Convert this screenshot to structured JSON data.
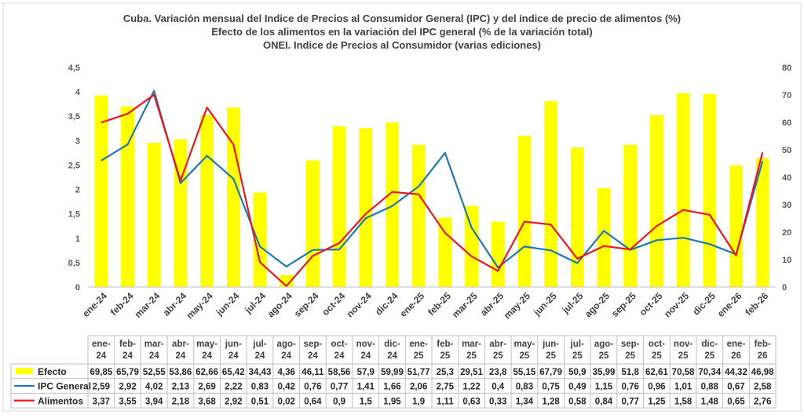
{
  "chart_data": {
    "type": "bar+line",
    "title_lines": [
      "Cuba. Variación mensual del Indice de Precios al Consumidor General  (IPC) y del índice de precio de alimentos (%)",
      "Efecto de los alimentos en la variación del IPC general (%  de la variación total)",
      "ONEI. Indice de Precios al Consumidor (varias ediciones)"
    ],
    "categories": [
      "ene-24",
      "feb-24",
      "mar-24",
      "abr-24",
      "may-24",
      "jun-24",
      "jul-24",
      "ago-24",
      "sep-24",
      "oct-24",
      "nov-24",
      "dic-24",
      "ene-25",
      "feb-25",
      "mar-25",
      "abr-25",
      "may-25",
      "jun-25",
      "jul-25",
      "ago-25",
      "sep-25",
      "oct-25",
      "nov-25",
      "dic-25",
      "ene-26",
      "feb-26"
    ],
    "table_categories": [
      [
        "ene-",
        "24"
      ],
      [
        "feb-",
        "24"
      ],
      [
        "mar-",
        "24"
      ],
      [
        "abr-",
        "24"
      ],
      [
        "may-",
        "24"
      ],
      [
        "jun-",
        "24"
      ],
      [
        "jul-",
        "24"
      ],
      [
        "ago-",
        "24"
      ],
      [
        "sep-",
        "24"
      ],
      [
        "oct-",
        "24"
      ],
      [
        "nov-",
        "24"
      ],
      [
        "dic-",
        "24"
      ],
      [
        "ene-",
        "25"
      ],
      [
        "feb-",
        "25"
      ],
      [
        "mar-",
        "25"
      ],
      [
        "abr-",
        "25"
      ],
      [
        "may-",
        "25"
      ],
      [
        "jun-",
        "25"
      ],
      [
        "jul-",
        "25"
      ],
      [
        "ago-",
        "25"
      ],
      [
        "sep-",
        "25"
      ],
      [
        "oct-",
        "25"
      ],
      [
        "nov-",
        "25"
      ],
      [
        "dic-",
        "25"
      ],
      [
        "ene-",
        "26"
      ],
      [
        "feb-",
        "26"
      ]
    ],
    "series": [
      {
        "name": "Efecto",
        "type": "bar",
        "axis": "right",
        "color": "#FFFF00",
        "values": [
          69.85,
          65.79,
          52.55,
          53.86,
          62.66,
          65.42,
          34.43,
          4.36,
          46.11,
          58.56,
          57.9,
          59.99,
          51.77,
          25.3,
          29.51,
          23.8,
          55.15,
          67.79,
          50.9,
          35.99,
          51.8,
          62.61,
          70.58,
          70.34,
          44.32,
          46.98
        ],
        "labels": [
          "69,85",
          "65,79",
          "52,55",
          "53,86",
          "62,66",
          "65,42",
          "34,43",
          "4,36",
          "46,11",
          "58,56",
          "57,9",
          "59,99",
          "51,77",
          "25,3",
          "29,51",
          "23,8",
          "55,15",
          "67,79",
          "50,9",
          "35,99",
          "51,8",
          "62,61",
          "70,58",
          "70,34",
          "44,32",
          "46,98"
        ]
      },
      {
        "name": "IPC General",
        "type": "line",
        "axis": "left",
        "color": "#1F77B4",
        "values": [
          2.59,
          2.92,
          4.02,
          2.13,
          2.69,
          2.22,
          0.83,
          0.42,
          0.76,
          0.77,
          1.41,
          1.66,
          2.06,
          2.75,
          1.22,
          0.4,
          0.83,
          0.75,
          0.49,
          1.15,
          0.76,
          0.96,
          1.01,
          0.88,
          0.67,
          2.58
        ],
        "labels": [
          "2,59",
          "2,92",
          "4,02",
          "2,13",
          "2,69",
          "2,22",
          "0,83",
          "0,42",
          "0,76",
          "0,77",
          "1,41",
          "1,66",
          "2,06",
          "2,75",
          "1,22",
          "0,4",
          "0,83",
          "0,75",
          "0,49",
          "1,15",
          "0,76",
          "0,96",
          "1,01",
          "0,88",
          "0,67",
          "2,58"
        ]
      },
      {
        "name": "Alimentos",
        "type": "line",
        "axis": "left",
        "color": "#E8181C",
        "values": [
          3.37,
          3.55,
          3.94,
          2.18,
          3.68,
          2.92,
          0.51,
          0.02,
          0.64,
          0.9,
          1.5,
          1.95,
          1.9,
          1.11,
          0.63,
          0.33,
          1.34,
          1.28,
          0.58,
          0.84,
          0.77,
          1.25,
          1.58,
          1.48,
          0.65,
          2.76
        ],
        "labels": [
          "3,37",
          "3,55",
          "3,94",
          "2,18",
          "3,68",
          "2,92",
          "0,51",
          "0,02",
          "0,64",
          "0,9",
          "1,5",
          "1,95",
          "1,9",
          "1,11",
          "0,63",
          "0,33",
          "1,34",
          "1,28",
          "0,58",
          "0,84",
          "0,77",
          "1,25",
          "1,58",
          "1,48",
          "0,65",
          "2,76"
        ]
      }
    ],
    "y_left": {
      "min": 0,
      "max": 4.5,
      "ticks": [
        "0",
        "0,5",
        "1",
        "1,5",
        "2",
        "2,5",
        "3",
        "3,5",
        "4",
        "4,5"
      ]
    },
    "y_right": {
      "min": 0,
      "max": 80,
      "ticks": [
        "0",
        "10",
        "20",
        "30",
        "40",
        "50",
        "60",
        "70",
        "80"
      ]
    },
    "grid": false,
    "legend_placement": "bottom-table"
  }
}
